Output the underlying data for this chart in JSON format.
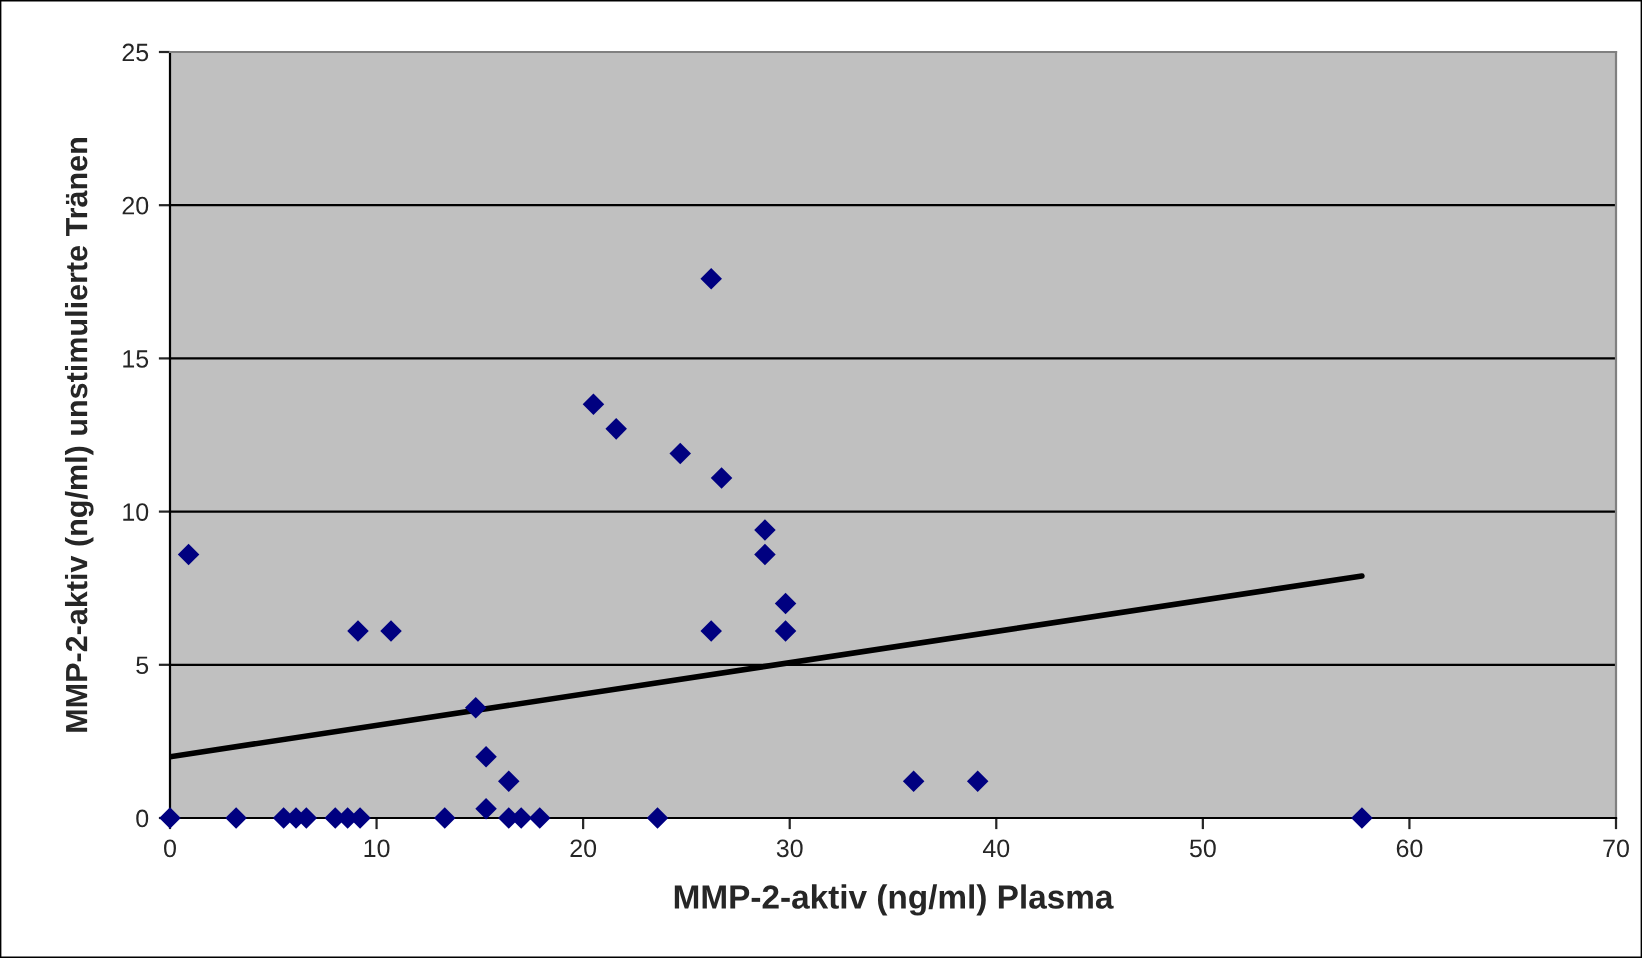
{
  "chart_data": {
    "type": "scatter",
    "xlabel": "MMP-2-aktiv (ng/ml) Plasma",
    "ylabel": "MMP-2-aktiv (ng/ml) unstimulierte Tränen",
    "xlim": [
      0,
      70
    ],
    "xticks": [
      0,
      10,
      20,
      30,
      40,
      50,
      60,
      70
    ],
    "ylim": [
      0,
      25
    ],
    "yticks": [
      0,
      5,
      10,
      15,
      20,
      25
    ],
    "grid": "y",
    "legend": false,
    "series": [
      {
        "color": "#000080",
        "marker": "diamond",
        "x": [
          0,
          0.9,
          3.2,
          5.5,
          6.1,
          6.6,
          8.0,
          8.6,
          9.2,
          9.1,
          10.7,
          13.3,
          14.8,
          15.3,
          15.3,
          16.4,
          16.4,
          17.0,
          17.9,
          23.6,
          20.5,
          21.6,
          24.7,
          26.7,
          28.8,
          28.8,
          29.8,
          29.8,
          26.2,
          26.2,
          36.0,
          39.1,
          57.7
        ],
        "values": [
          0,
          8.6,
          0,
          0,
          0,
          0,
          0,
          0,
          0,
          6.1,
          6.1,
          0,
          3.6,
          2.0,
          0.3,
          1.2,
          0,
          0,
          0,
          0,
          13.5,
          12.7,
          11.9,
          11.1,
          9.4,
          8.6,
          7.0,
          6.1,
          6.1,
          17.6,
          1.2,
          1.2,
          0
        ]
      },
      {
        "type": "line",
        "color": "#000000",
        "marker": "none",
        "line_style": "solid",
        "x": [
          0,
          57.7
        ],
        "values": [
          2.0,
          7.9
        ]
      }
    ]
  }
}
